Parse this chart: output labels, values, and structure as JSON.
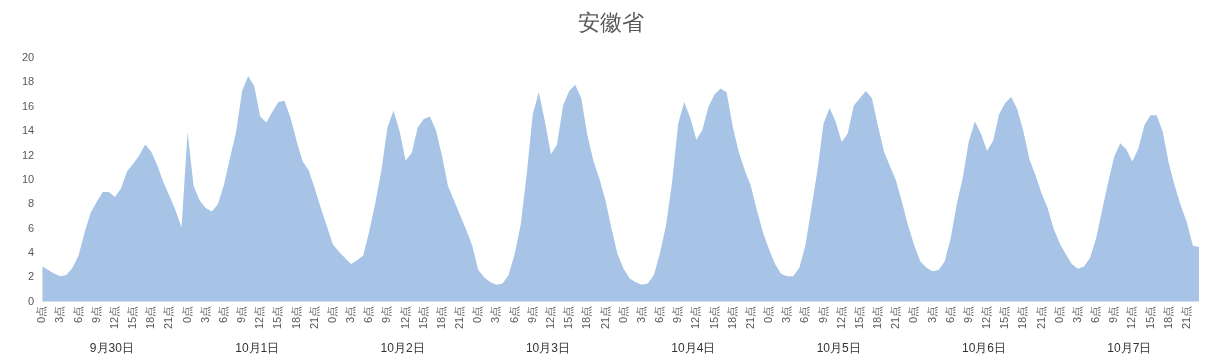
{
  "chart_data": {
    "type": "area",
    "title": "安徽省",
    "categories": [
      "0点",
      null,
      null,
      "3点",
      null,
      null,
      "6点",
      null,
      null,
      "9点",
      null,
      null,
      "12点",
      null,
      null,
      "15点",
      null,
      null,
      "18点",
      null,
      null,
      "21点",
      null,
      null,
      "0点",
      null,
      null,
      "3点",
      null,
      null,
      "6点",
      null,
      null,
      "9点",
      null,
      null,
      "12点",
      null,
      null,
      "15点",
      null,
      null,
      "18点",
      null,
      null,
      "21点",
      null,
      null,
      "0点",
      null,
      null,
      "3点",
      null,
      null,
      "6点",
      null,
      null,
      "9点",
      null,
      null,
      "12点",
      null,
      null,
      "15点",
      null,
      null,
      "18点",
      null,
      null,
      "21点",
      null,
      null,
      "0点",
      null,
      null,
      "3点",
      null,
      null,
      "6点",
      null,
      null,
      "9点",
      null,
      null,
      "12点",
      null,
      null,
      "15点",
      null,
      null,
      "18点",
      null,
      null,
      "21点",
      null,
      null,
      "0点",
      null,
      null,
      "3点",
      null,
      null,
      "6点",
      null,
      null,
      "9点",
      null,
      null,
      "12点",
      null,
      null,
      "15点",
      null,
      null,
      "18点",
      null,
      null,
      "21点",
      null,
      null,
      "0点",
      null,
      null,
      "3点",
      null,
      null,
      "6点",
      null,
      null,
      "9点",
      null,
      null,
      "12点",
      null,
      null,
      "15点",
      null,
      null,
      "18点",
      null,
      null,
      "21点",
      null,
      null,
      "0点",
      null,
      null,
      "3点",
      null,
      null,
      "6点",
      null,
      null,
      "9点",
      null,
      null,
      "12点",
      null,
      null,
      "15点",
      null,
      null,
      "18点",
      null,
      null,
      "21点",
      null,
      null,
      "0点",
      null,
      null,
      "3点",
      null,
      null,
      "6点",
      null,
      null,
      "9点",
      null,
      null,
      "12点",
      null,
      null,
      "15点",
      null,
      null,
      "18点",
      null,
      null,
      "21点",
      null,
      null
    ],
    "series": [
      {
        "color": "#a7c4e7",
        "values": [
          2.9,
          2.6,
          2.3,
          2.1,
          2.2,
          2.8,
          3.8,
          5.7,
          7.3,
          8.2,
          9.0,
          9.0,
          8.6,
          9.3,
          10.7,
          11.3,
          12.0,
          12.9,
          12.3,
          11.2,
          9.8,
          8.7,
          7.5,
          6.1,
          13.9,
          9.5,
          8.3,
          7.7,
          7.4,
          8.0,
          9.6,
          11.8,
          13.9,
          17.3,
          18.5,
          17.7,
          15.2,
          14.7,
          15.6,
          16.4,
          16.5,
          15.1,
          13.2,
          11.5,
          10.8,
          9.3,
          7.7,
          6.2,
          4.7,
          4.1,
          3.6,
          3.1,
          3.4,
          3.8,
          5.8,
          8.1,
          10.8,
          14.3,
          15.7,
          14.0,
          11.6,
          12.2,
          14.3,
          15.0,
          15.2,
          14.1,
          12.0,
          9.5,
          8.3,
          7.1,
          5.9,
          4.6,
          2.6,
          2.0,
          1.6,
          1.4,
          1.5,
          2.2,
          3.9,
          6.3,
          10.5,
          15.4,
          17.2,
          14.8,
          12.1,
          12.9,
          16.1,
          17.3,
          17.8,
          16.7,
          13.7,
          11.6,
          10.1,
          8.3,
          6.0,
          3.9,
          2.7,
          1.9,
          1.6,
          1.4,
          1.5,
          2.2,
          4.0,
          6.3,
          9.8,
          14.6,
          16.4,
          15.1,
          13.3,
          14.1,
          16.0,
          17.0,
          17.5,
          17.2,
          14.4,
          12.3,
          10.8,
          9.5,
          7.5,
          5.7,
          4.3,
          3.1,
          2.3,
          2.1,
          2.1,
          2.8,
          4.6,
          7.7,
          10.8,
          14.6,
          15.9,
          14.8,
          13.1,
          13.8,
          16.1,
          16.7,
          17.3,
          16.7,
          14.4,
          12.3,
          11.1,
          9.9,
          8.1,
          6.2,
          4.6,
          3.3,
          2.8,
          2.5,
          2.6,
          3.3,
          5.2,
          8.0,
          10.2,
          13.2,
          14.8,
          13.8,
          12.4,
          13.2,
          15.4,
          16.3,
          16.8,
          15.8,
          14.0,
          11.7,
          10.4,
          8.9,
          7.7,
          6.0,
          4.8,
          3.9,
          3.1,
          2.7,
          2.9,
          3.6,
          5.2,
          7.5,
          9.8,
          11.9,
          13.0,
          12.5,
          11.5,
          12.6,
          14.5,
          15.3,
          15.3,
          14.0,
          11.4,
          9.5,
          7.9,
          6.5,
          4.6,
          4.5
        ]
      }
    ],
    "ylim": [
      0,
      20
    ],
    "yticks": [
      0,
      2,
      4,
      6,
      8,
      10,
      12,
      14,
      16,
      18,
      20
    ],
    "grid": false,
    "legend": false,
    "annotations": [
      "9月30日",
      "10月1日",
      "10月2日",
      "10月3日",
      "10月4日",
      "10月5日",
      "10月6日",
      "10月7日"
    ]
  }
}
